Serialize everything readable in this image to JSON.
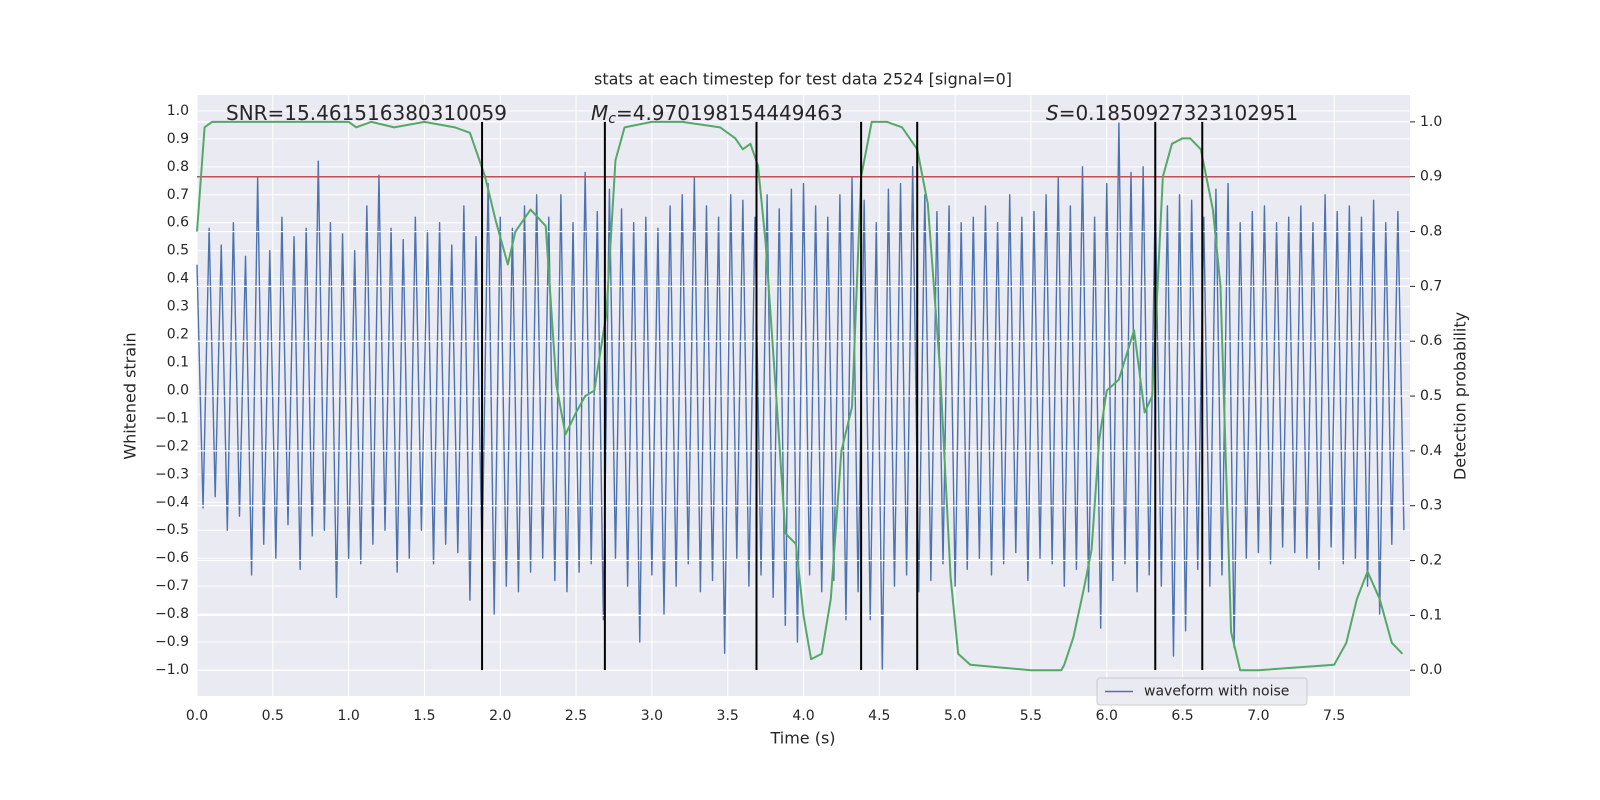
{
  "chart_data": {
    "type": "line",
    "title": "stats at each timestep for test data 2524 [signal=0]",
    "xlabel": "Time (s)",
    "ylabel": "Whitened strain",
    "y2label": "Detection probability",
    "annotations": [
      {
        "text": "SNR=15.461516380310059"
      },
      {
        "symbol": "M",
        "subscript": "c",
        "text": "=4.970198154449463"
      },
      {
        "symbol": "S",
        "text": "=0.1850927323102951"
      }
    ],
    "xlim": [
      0,
      8
    ],
    "ylim": [
      -1.093,
      1.057
    ],
    "y2lim": [
      -0.047,
      1.049
    ],
    "xticks": [
      {
        "value": 0,
        "label": "0.0"
      },
      {
        "value": 0.5,
        "label": "0.5"
      },
      {
        "value": 1,
        "label": "1.0"
      },
      {
        "value": 1.5,
        "label": "1.5"
      },
      {
        "value": 2,
        "label": "2.0"
      },
      {
        "value": 2.5,
        "label": "2.5"
      },
      {
        "value": 3,
        "label": "3.0"
      },
      {
        "value": 3.5,
        "label": "3.5"
      },
      {
        "value": 4,
        "label": "4.0"
      },
      {
        "value": 4.5,
        "label": "4.5"
      },
      {
        "value": 5,
        "label": "5.0"
      },
      {
        "value": 5.5,
        "label": "5.5"
      },
      {
        "value": 6,
        "label": "6.0"
      },
      {
        "value": 6.5,
        "label": "6.5"
      },
      {
        "value": 7,
        "label": "7.0"
      },
      {
        "value": 7.5,
        "label": "7.5"
      }
    ],
    "yticks": [
      {
        "value": -1,
        "label": "−1.0"
      },
      {
        "value": -0.9,
        "label": "−0.9"
      },
      {
        "value": -0.8,
        "label": "−0.8"
      },
      {
        "value": -0.7,
        "label": "−0.7"
      },
      {
        "value": -0.6,
        "label": "−0.6"
      },
      {
        "value": -0.5,
        "label": "−0.5"
      },
      {
        "value": -0.4,
        "label": "−0.4"
      },
      {
        "value": -0.3,
        "label": "−0.3"
      },
      {
        "value": -0.2,
        "label": "−0.2"
      },
      {
        "value": -0.1,
        "label": "−0.1"
      },
      {
        "value": 0,
        "label": "0.0"
      },
      {
        "value": 0.1,
        "label": "0.1"
      },
      {
        "value": 0.2,
        "label": "0.2"
      },
      {
        "value": 0.3,
        "label": "0.3"
      },
      {
        "value": 0.4,
        "label": "0.4"
      },
      {
        "value": 0.5,
        "label": "0.5"
      },
      {
        "value": 0.6,
        "label": "0.6"
      },
      {
        "value": 0.7,
        "label": "0.7"
      },
      {
        "value": 0.8,
        "label": "0.8"
      },
      {
        "value": 0.9,
        "label": "0.9"
      },
      {
        "value": 1,
        "label": "1.0"
      }
    ],
    "y2ticks": [
      {
        "value": 0,
        "label": "0.0"
      },
      {
        "value": 0.1,
        "label": "0.1"
      },
      {
        "value": 0.2,
        "label": "0.2"
      },
      {
        "value": 0.3,
        "label": "0.3"
      },
      {
        "value": 0.4,
        "label": "0.4"
      },
      {
        "value": 0.5,
        "label": "0.5"
      },
      {
        "value": 0.6,
        "label": "0.6"
      },
      {
        "value": 0.7,
        "label": "0.7"
      },
      {
        "value": 0.8,
        "label": "0.8"
      },
      {
        "value": 0.9,
        "label": "0.9"
      },
      {
        "value": 1,
        "label": "1.0"
      }
    ],
    "grid": true,
    "legend": "lower right",
    "series": [
      {
        "name": "waveform with noise",
        "color": "#4c72b0",
        "x": [
          0,
          0.04,
          0.08,
          0.12,
          0.16,
          0.2,
          0.24,
          0.28,
          0.32,
          0.36,
          0.4,
          0.44,
          0.48,
          0.52,
          0.56,
          0.6,
          0.64,
          0.68,
          0.72,
          0.76,
          0.8,
          0.84,
          0.88,
          0.92,
          0.96,
          1,
          1.04,
          1.08,
          1.12,
          1.16,
          1.2,
          1.24,
          1.28,
          1.32,
          1.36,
          1.4,
          1.44,
          1.48,
          1.52,
          1.56,
          1.6,
          1.64,
          1.68,
          1.72,
          1.76,
          1.8,
          1.84,
          1.88,
          1.92,
          1.96,
          2,
          2.04,
          2.08,
          2.12,
          2.16,
          2.2,
          2.24,
          2.28,
          2.32,
          2.36,
          2.4,
          2.44,
          2.48,
          2.52,
          2.56,
          2.6,
          2.64,
          2.68,
          2.72,
          2.76,
          2.8,
          2.84,
          2.88,
          2.92,
          2.96,
          3,
          3.04,
          3.08,
          3.12,
          3.16,
          3.2,
          3.24,
          3.28,
          3.32,
          3.36,
          3.4,
          3.44,
          3.48,
          3.52,
          3.56,
          3.6,
          3.64,
          3.68,
          3.72,
          3.76,
          3.8,
          3.84,
          3.88,
          3.92,
          3.96,
          4,
          4.04,
          4.08,
          4.12,
          4.16,
          4.2,
          4.24,
          4.28,
          4.32,
          4.36,
          4.4,
          4.44,
          4.48,
          4.52,
          4.56,
          4.6,
          4.64,
          4.68,
          4.72,
          4.76,
          4.8,
          4.84,
          4.88,
          4.92,
          4.96,
          5,
          5.04,
          5.08,
          5.12,
          5.16,
          5.2,
          5.24,
          5.28,
          5.32,
          5.36,
          5.4,
          5.44,
          5.48,
          5.52,
          5.56,
          5.6,
          5.64,
          5.68,
          5.72,
          5.76,
          5.8,
          5.84,
          5.88,
          5.92,
          5.96,
          6,
          6.04,
          6.08,
          6.12,
          6.16,
          6.2,
          6.24,
          6.28,
          6.32,
          6.36,
          6.4,
          6.44,
          6.48,
          6.52,
          6.56,
          6.6,
          6.64,
          6.68,
          6.72,
          6.76,
          6.8,
          6.84,
          6.88,
          6.92,
          6.96,
          7,
          7.04,
          7.08,
          7.12,
          7.16,
          7.2,
          7.24,
          7.28,
          7.32,
          7.36,
          7.4,
          7.44,
          7.48,
          7.52,
          7.56,
          7.6,
          7.64,
          7.68,
          7.72,
          7.76,
          7.8,
          7.84,
          7.88,
          7.92,
          7.96
        ],
        "values": [
          0.45,
          -0.42,
          0.58,
          -0.38,
          0.52,
          -0.5,
          0.6,
          -0.45,
          0.48,
          -0.66,
          0.76,
          -0.55,
          0.5,
          -0.6,
          0.62,
          -0.48,
          0.55,
          -0.64,
          0.58,
          -0.52,
          0.82,
          -0.5,
          0.6,
          -0.74,
          0.56,
          -0.6,
          0.5,
          -0.62,
          0.66,
          -0.55,
          0.77,
          -0.5,
          0.58,
          -0.65,
          0.54,
          -0.6,
          0.62,
          -0.5,
          0.57,
          -0.62,
          0.6,
          -0.55,
          0.52,
          -0.58,
          0.66,
          -0.75,
          0.55,
          -0.6,
          0.74,
          -0.8,
          0.62,
          -0.7,
          0.58,
          -0.72,
          0.66,
          -0.65,
          0.7,
          -0.6,
          0.62,
          -0.68,
          0.7,
          -0.72,
          0.6,
          -0.65,
          0.78,
          -0.62,
          0.64,
          -0.82,
          0.72,
          -0.6,
          0.65,
          -0.7,
          0.6,
          -0.9,
          0.62,
          -0.66,
          0.58,
          -0.8,
          0.66,
          -0.7,
          0.7,
          -0.62,
          0.76,
          -0.72,
          0.66,
          -0.68,
          0.62,
          -0.94,
          0.7,
          -0.6,
          0.68,
          -0.7,
          0.62,
          -0.66,
          0.7,
          -0.74,
          0.65,
          -0.84,
          0.72,
          -0.9,
          0.74,
          -0.66,
          0.66,
          -0.72,
          0.62,
          -0.68,
          0.7,
          -0.82,
          0.76,
          -0.72,
          0.68,
          -0.82,
          0.6,
          -1.0,
          0.72,
          -0.7,
          0.74,
          -0.66,
          0.8,
          -0.72,
          0.7,
          -0.68,
          0.64,
          -0.62,
          0.66,
          -0.7,
          0.6,
          -0.64,
          0.62,
          -0.6,
          0.66,
          -0.66,
          0.6,
          -0.62,
          0.7,
          -0.58,
          0.62,
          -0.68,
          0.64,
          -0.6,
          0.7,
          -0.62,
          0.76,
          -0.7,
          0.66,
          -0.64,
          0.8,
          -0.72,
          0.62,
          -0.85,
          0.74,
          -0.68,
          0.96,
          -0.62,
          0.78,
          -0.72,
          0.8,
          -0.66,
          0.7,
          -0.7,
          0.66,
          -0.95,
          0.7,
          -0.86,
          0.68,
          -0.64,
          0.62,
          -0.7,
          0.72,
          -0.66,
          0.74,
          -0.92,
          0.6,
          -0.6,
          0.64,
          -0.58,
          0.66,
          -0.62,
          0.6,
          -0.56,
          0.62,
          -0.58,
          0.66,
          -0.6,
          0.6,
          -0.64,
          0.7,
          -0.56,
          0.64,
          -0.62,
          0.66,
          -0.6,
          0.62,
          -0.7,
          0.68,
          -0.8,
          0.6,
          -0.55,
          0.64,
          -0.5
        ]
      },
      {
        "color": "#55a868",
        "axis": "y2",
        "x": [
          0,
          0.05,
          0.1,
          0.5,
          1,
          1.05,
          1.15,
          1.3,
          1.5,
          1.7,
          1.8,
          1.9,
          1.97,
          2.05,
          2.1,
          2.2,
          2.3,
          2.37,
          2.43,
          2.5,
          2.56,
          2.62,
          2.7,
          2.76,
          2.82,
          3,
          3.2,
          3.45,
          3.55,
          3.6,
          3.65,
          3.7,
          3.75,
          3.82,
          3.88,
          3.95,
          4,
          4.05,
          4.12,
          4.18,
          4.25,
          4.32,
          4.38,
          4.45,
          4.55,
          4.65,
          4.75,
          4.82,
          4.9,
          4.97,
          5.02,
          5.1,
          5.5,
          5.7,
          5.72,
          5.78,
          5.85,
          5.9,
          5.95,
          6,
          6.08,
          6.18,
          6.25,
          6.3,
          6.37,
          6.43,
          6.5,
          6.55,
          6.62,
          6.7,
          6.75,
          6.82,
          6.88,
          7,
          7.5,
          7.58,
          7.65,
          7.72,
          7.8,
          7.88,
          7.95
        ],
        "values": [
          0.8,
          0.99,
          1.0,
          1.0,
          1.0,
          0.99,
          1.0,
          0.99,
          1.0,
          0.99,
          0.98,
          0.9,
          0.82,
          0.74,
          0.8,
          0.84,
          0.81,
          0.52,
          0.43,
          0.47,
          0.5,
          0.51,
          0.65,
          0.93,
          0.99,
          1.0,
          1.0,
          0.99,
          0.97,
          0.95,
          0.96,
          0.92,
          0.78,
          0.5,
          0.25,
          0.23,
          0.1,
          0.02,
          0.03,
          0.13,
          0.4,
          0.48,
          0.9,
          1.0,
          1.0,
          0.99,
          0.95,
          0.85,
          0.55,
          0.17,
          0.03,
          0.01,
          0.0,
          0.0,
          0.01,
          0.06,
          0.15,
          0.22,
          0.42,
          0.51,
          0.53,
          0.62,
          0.47,
          0.5,
          0.9,
          0.96,
          0.97,
          0.97,
          0.95,
          0.84,
          0.7,
          0.07,
          0.0,
          0.0,
          0.01,
          0.05,
          0.13,
          0.18,
          0.13,
          0.05,
          0.03
        ]
      }
    ],
    "hline": {
      "value": 0.9,
      "axis": "y2",
      "color": "#c44e52"
    },
    "vlines": {
      "x": [
        1.88,
        2.69,
        3.69,
        4.38,
        4.75,
        6.32,
        6.63
      ],
      "ymin": -1.0,
      "y2max": 1.0,
      "color": "#000000"
    }
  }
}
